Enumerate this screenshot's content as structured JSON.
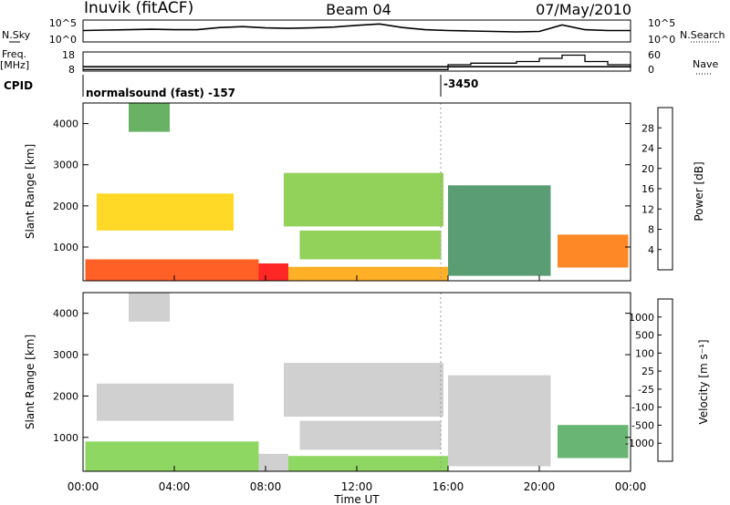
{
  "header": {
    "station": "Inuvik (fitACF)",
    "beam": "Beam 04",
    "date": "07/May/2010"
  },
  "colors": {
    "axis": "#000000",
    "divider": "#9a9a9a"
  },
  "chart_data": [
    {
      "type": "line",
      "name": "nsky-nsearch",
      "left_label": "N.Sky",
      "right_label": "N.Search",
      "left_ticks": [
        "10^5",
        "10^0"
      ],
      "right_ticks": [
        "10^5",
        "10^0"
      ],
      "x_hours": [
        0,
        1,
        2,
        3,
        4,
        5,
        6,
        7,
        8,
        9,
        10,
        11,
        12,
        13,
        14,
        15,
        16,
        17,
        18,
        19,
        20,
        21,
        22,
        23,
        24
      ],
      "nsky_log": [
        2.6,
        2.7,
        2.8,
        2.9,
        2.8,
        2.8,
        3.3,
        3.5,
        3.2,
        3.1,
        3.2,
        3.4,
        3.8,
        4.1,
        3.3,
        2.8,
        2.6,
        2.5,
        2.4,
        2.3,
        2.4,
        3.9,
        2.8,
        2.6,
        2.6
      ]
    },
    {
      "type": "line",
      "name": "freq-nave",
      "left_label": "Freq.",
      "left_unit": "[MHz]",
      "right_label": "Nave",
      "left_ticks": [
        "18",
        "8"
      ],
      "right_ticks": [
        "60",
        "0"
      ],
      "ylim": [
        8,
        18
      ],
      "x_hours": [
        0,
        1,
        2,
        3,
        4,
        5,
        6,
        7,
        8,
        9,
        10,
        11,
        12,
        13,
        14,
        15,
        16,
        17,
        18,
        19,
        20,
        21,
        22,
        23,
        24
      ],
      "freq_mhz": [
        10.3,
        10.3,
        10.3,
        10.3,
        10.3,
        10.3,
        10.3,
        10.3,
        10.3,
        10.3,
        10.3,
        10.3,
        10.3,
        10.3,
        10.3,
        10.3,
        10.3,
        10.3,
        10.3,
        10.3,
        10.3,
        10.3,
        10.3,
        10.3,
        10.3
      ],
      "nave": [
        5,
        5,
        5,
        5,
        5,
        5,
        5,
        5,
        5,
        5,
        5,
        5,
        5,
        5,
        5,
        5,
        20,
        25,
        25,
        30,
        40,
        50,
        30,
        20,
        10
      ]
    },
    {
      "type": "table",
      "name": "cpid",
      "label": "CPID",
      "entries": [
        {
          "hour": 0,
          "text": "normalsound (fast) -157"
        },
        {
          "hour": 15.7,
          "text": "-3450"
        }
      ]
    },
    {
      "type": "heatmap",
      "name": "power",
      "ylabel": "Slant Range [km]",
      "ylim": [
        180,
        4500
      ],
      "yticks": [
        "1000",
        "2000",
        "3000",
        "4000"
      ],
      "xlim": [
        0,
        24
      ],
      "colorbar": {
        "label": "Power [dB]",
        "range": [
          0,
          32
        ],
        "ticks": [
          "4",
          "8",
          "12",
          "16",
          "20",
          "24",
          "28"
        ],
        "colors": [
          "#0000ff",
          "#3049c8",
          "#3d6a9c",
          "#3d8c5c",
          "#4ea34a",
          "#7fc93d",
          "#c8e22a",
          "#ffd200",
          "#ffa200",
          "#ff7300",
          "#ff4400",
          "#ff0000"
        ]
      },
      "bands": [
        {
          "t0": 0.1,
          "t1": 7.7,
          "r0": 180,
          "r1": 700,
          "value": 27
        },
        {
          "t0": 7.7,
          "t1": 9.0,
          "r0": 180,
          "r1": 600,
          "value": 30
        },
        {
          "t0": 9.0,
          "t1": 16.0,
          "r0": 180,
          "r1": 520,
          "value": 22
        },
        {
          "t0": 20.8,
          "t1": 23.9,
          "r0": 500,
          "r1": 1300,
          "value": 26
        },
        {
          "t0": 0.6,
          "t1": 6.6,
          "r0": 1400,
          "r1": 2300,
          "value": 21
        },
        {
          "t0": 8.8,
          "t1": 15.8,
          "r0": 1500,
          "r1": 2800,
          "value": 15
        },
        {
          "t0": 9.5,
          "t1": 15.7,
          "r0": 700,
          "r1": 1400,
          "value": 14
        },
        {
          "t0": 16.0,
          "t1": 20.5,
          "r0": 300,
          "r1": 2500,
          "value": 9
        },
        {
          "t0": 2.0,
          "t1": 3.8,
          "r0": 3800,
          "r1": 4500,
          "value": 11
        }
      ]
    },
    {
      "type": "heatmap",
      "name": "velocity",
      "ylabel": "Slant Range [km]",
      "ylim": [
        180,
        4500
      ],
      "yticks": [
        "1000",
        "2000",
        "3000",
        "4000"
      ],
      "xlim": [
        0,
        24
      ],
      "xlabel": "Time UT",
      "xticks": [
        "00:00",
        "04:00",
        "08:00",
        "12:00",
        "16:00",
        "20:00",
        "00:00"
      ],
      "xtick_hours": [
        0,
        4,
        8,
        12,
        16,
        20,
        24
      ],
      "colorbar": {
        "label": "Velocity [m s⁻¹]",
        "range": [
          -1200,
          1200
        ],
        "ticks": [
          "1000",
          "500",
          "100",
          "25",
          "-25",
          "-100",
          "-500",
          "-1000"
        ],
        "colors": [
          "#1f3fb0",
          "#2d6ea0",
          "#3a8a6a",
          "#4fa85a",
          "#7bd048",
          "#c8c8c8",
          "#c8c8c8",
          "#ffb000",
          "#ff8a00",
          "#ff5a00",
          "#ff2000"
        ]
      },
      "bands": [
        {
          "t0": 0.1,
          "t1": 7.7,
          "r0": 180,
          "r1": 900,
          "value": -250
        },
        {
          "t0": 7.7,
          "t1": 9.0,
          "r0": 180,
          "r1": 600,
          "value": 60
        },
        {
          "t0": 9.0,
          "t1": 16.0,
          "r0": 180,
          "r1": 550,
          "value": -300
        },
        {
          "t0": 20.8,
          "t1": 23.9,
          "r0": 500,
          "r1": 1300,
          "value": -400
        },
        {
          "t0": 0.6,
          "t1": 6.6,
          "r0": 1400,
          "r1": 2300,
          "value": 0
        },
        {
          "t0": 8.8,
          "t1": 15.8,
          "r0": 1500,
          "r1": 2800,
          "value": 5
        },
        {
          "t0": 9.5,
          "t1": 15.7,
          "r0": 700,
          "r1": 1400,
          "value": 200
        },
        {
          "t0": 16.0,
          "t1": 20.5,
          "r0": 300,
          "r1": 2500,
          "value": -60
        },
        {
          "t0": 2.0,
          "t1": 3.8,
          "r0": 3800,
          "r1": 4500,
          "value": 0
        }
      ]
    }
  ]
}
